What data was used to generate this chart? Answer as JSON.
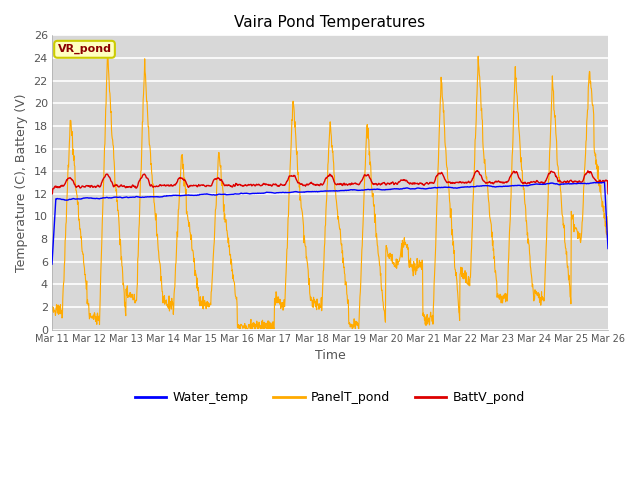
{
  "title": "Vaira Pond Temperatures",
  "xlabel": "Time",
  "ylabel": "Temperature (C), Battery (V)",
  "ylim": [
    0,
    26
  ],
  "yticks": [
    0,
    2,
    4,
    6,
    8,
    10,
    12,
    14,
    16,
    18,
    20,
    22,
    24,
    26
  ],
  "site_label": "VR_pond",
  "fig_bg_color": "#ffffff",
  "plot_bg_color": "#d8d8d8",
  "grid_color": "#f0f0f0",
  "water_color": "#0000ff",
  "panel_color": "#ffaa00",
  "batt_color": "#dd0000",
  "legend_labels": [
    "Water_temp",
    "PanelT_pond",
    "BattV_pond"
  ],
  "xtick_labels": [
    "Mar 11",
    "Mar 12",
    "Mar 13",
    "Mar 14",
    "Mar 15",
    "Mar 16",
    "Mar 17",
    "Mar 18",
    "Mar 19",
    "Mar 20",
    "Mar 21",
    "Mar 22",
    "Mar 23",
    "Mar 24",
    "Mar 25",
    "Mar 26"
  ],
  "num_days": 15,
  "pts_per_day": 96,
  "peak_vals": [
    19,
    24.5,
    23.5,
    15.8,
    15.8,
    0.3,
    20.5,
    18.5,
    18.5,
    8.0,
    22.5,
    24.0,
    23.0,
    22.0,
    23.0
  ],
  "min_vals": [
    1.5,
    0.9,
    2.5,
    2.0,
    2.0,
    0.2,
    2.2,
    2.0,
    0.3,
    5.5,
    0.8,
    4.0,
    2.5,
    2.5,
    7.8
  ]
}
